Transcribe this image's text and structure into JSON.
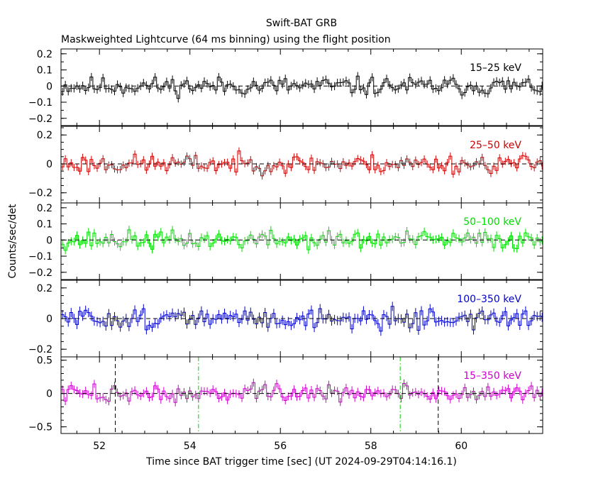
{
  "title": "Swift-BAT GRB",
  "subtitle": "Maskweighted Lightcurve (64 ms binning) using the flight position",
  "xlabel": "Time since BAT trigger time [sec] (UT 2024-09-29T04:14:16.1)",
  "ylabel": "Counts/sec/det",
  "chart_data": {
    "type": "line",
    "style": "step-with-error-bars",
    "bin_width_s": 0.064,
    "xlim": [
      51.15,
      61.8
    ],
    "x_ticks": [
      52,
      54,
      56,
      58,
      60
    ],
    "x_minor_step": 0.5,
    "grid": false,
    "zero_line": "dashed",
    "panels": [
      {
        "name": "15–25 keV",
        "color": "#000000",
        "ylim": [
          -0.245,
          0.23
        ],
        "y_ticks": [
          -0.2,
          -0.1,
          0,
          0.1,
          0.2
        ],
        "y_tick_labels": [
          "−0.2",
          "−0.1",
          "0",
          "0.1",
          "0.2"
        ],
        "y_minor_step": 0.05,
        "noise_amplitude": 0.035,
        "error": 0.05,
        "seed": 11
      },
      {
        "name": "25–50 keV",
        "color": "#cc0000",
        "ylim": [
          -0.27,
          0.26
        ],
        "y_ticks": [
          -0.2,
          0,
          0.2
        ],
        "y_tick_labels": [
          "−0.2",
          "0",
          "0.2"
        ],
        "y_minor_step": 0.05,
        "noise_amplitude": 0.04,
        "error": 0.05,
        "seed": 23
      },
      {
        "name": "50–100 keV",
        "color": "#00dd00",
        "ylim": [
          -0.245,
          0.23
        ],
        "y_ticks": [
          -0.2,
          -0.1,
          0,
          0.1,
          0.2
        ],
        "y_tick_labels": [
          "−0.2",
          "−0.1",
          "0",
          "0.1",
          "0.2"
        ],
        "y_minor_step": 0.05,
        "noise_amplitude": 0.035,
        "error": 0.05,
        "seed": 37
      },
      {
        "name": "100–350 keV",
        "color": "#0000cc",
        "ylim": [
          -0.25,
          0.25
        ],
        "y_ticks": [
          -0.2,
          0,
          0.2
        ],
        "y_tick_labels": [
          "−0.2",
          "0",
          "0.2"
        ],
        "y_minor_step": 0.05,
        "noise_amplitude": 0.04,
        "error": 0.06,
        "seed": 51
      },
      {
        "name": "15–350 keV",
        "color": "#cc00cc",
        "ylim": [
          -0.6,
          0.55
        ],
        "y_ticks": [
          -0.5,
          0,
          0.5
        ],
        "y_tick_labels": [
          "−0.5",
          "0",
          "0.5"
        ],
        "y_minor_step": 0.1,
        "noise_amplitude": 0.08,
        "error": 0.12,
        "seed": 73
      }
    ],
    "markers": [
      {
        "x": 52.35,
        "style": "black-dashed"
      },
      {
        "x": 54.19,
        "style": "green-dashdot"
      },
      {
        "x": 58.65,
        "style": "green-dashdot"
      },
      {
        "x": 59.49,
        "style": "black-dashed"
      }
    ]
  }
}
